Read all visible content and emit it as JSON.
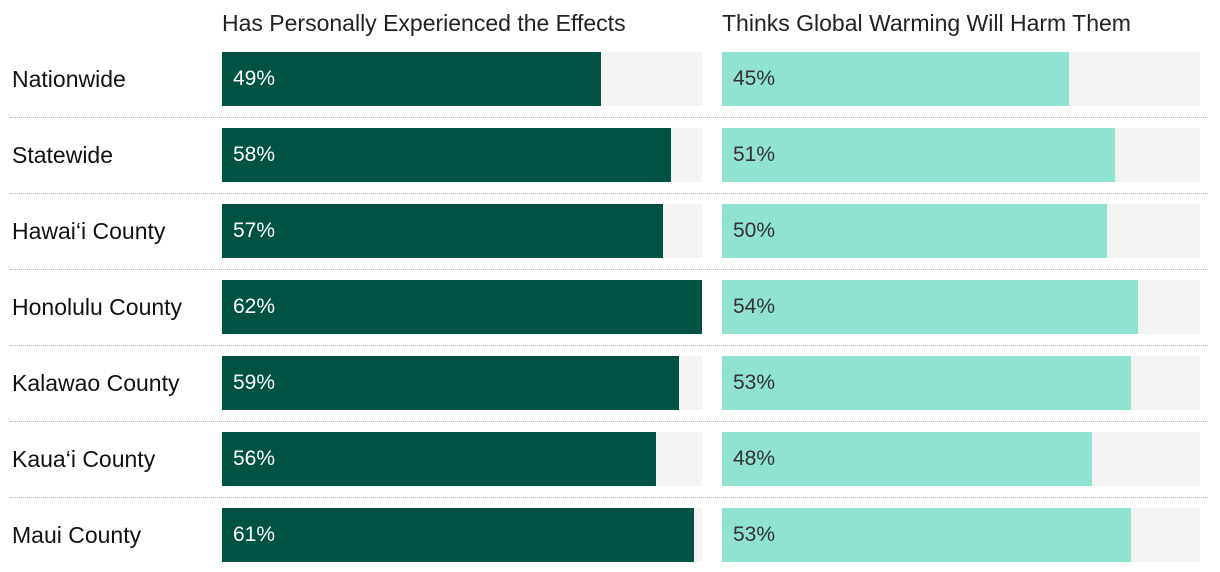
{
  "chart_data": {
    "type": "bar",
    "orientation": "horizontal",
    "categories": [
      "Nationwide",
      "Statewide",
      "Hawai‘i County",
      "Honolulu County",
      "Kalawao County",
      "Kaua‘i County",
      "Maui County"
    ],
    "series": [
      {
        "name": "Has Personally Experienced the Effects",
        "values": [
          49,
          58,
          57,
          62,
          59,
          56,
          61
        ],
        "color": "#005242",
        "label_color": "#ffffff"
      },
      {
        "name": "Thinks Global Warming Will Harm Them",
        "values": [
          45,
          51,
          50,
          54,
          53,
          48,
          53
        ],
        "color": "#8fe3d0",
        "label_color": "#333333"
      }
    ],
    "value_suffix": "%",
    "xlim": [
      0,
      62
    ],
    "track_color": "#f3f3f3",
    "grid": false,
    "legend": "none"
  }
}
